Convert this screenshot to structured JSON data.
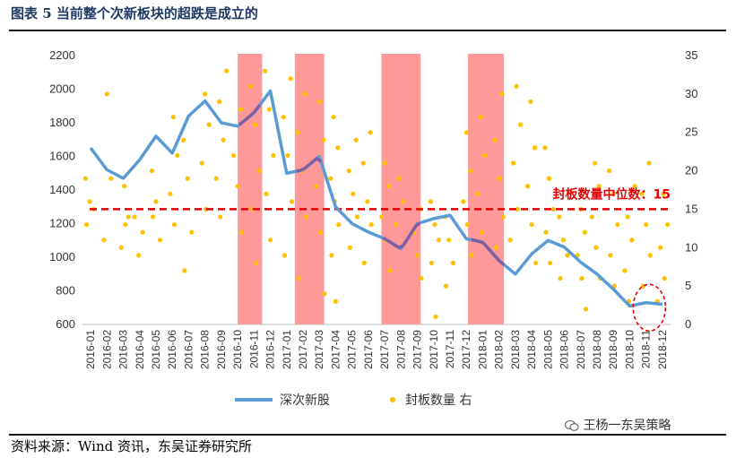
{
  "header": {
    "title": "图表 5  当前整个次新板块的超跌是成立的"
  },
  "footer": {
    "source": "资料来源：Wind 资讯，东吴证券研究所"
  },
  "watermark": {
    "text": "王杨一东吴策略",
    "icon": "wechat-icon"
  },
  "colors": {
    "line": "#5b9bd5",
    "dots": "#ffc000",
    "shade": "#ff9999",
    "median": "#e60000",
    "highlight": "#7f5f9f"
  },
  "chart_data": {
    "type": "line",
    "title": "",
    "x_categories": [
      "2016-01",
      "2016-02",
      "2016-03",
      "2016-04",
      "2016-05",
      "2016-06",
      "2016-07",
      "2016-08",
      "2016-09",
      "2016-10",
      "2016-11",
      "2016-12",
      "2017-01",
      "2017-02",
      "2017-03",
      "2017-04",
      "2017-05",
      "2017-06",
      "2017-07",
      "2017-08",
      "2017-09",
      "2017-10",
      "2017-11",
      "2017-12",
      "2018-01",
      "2018-02",
      "2018-03",
      "2018-04",
      "2018-05",
      "2018-06",
      "2018-07",
      "2018-08",
      "2018-09",
      "2018-10",
      "2018-11",
      "2018-12"
    ],
    "y_left": {
      "ticks": [
        "2200",
        "2000",
        "1800",
        "1600",
        "1400",
        "1200",
        "1000",
        "800",
        "600"
      ],
      "min": 600,
      "max": 2200
    },
    "y_right": {
      "ticks": [
        "35",
        "30",
        "25",
        "20",
        "15",
        "10",
        "5",
        "0"
      ],
      "min": 0,
      "max": 35
    },
    "series": [
      {
        "name": "深次新股",
        "axis": "left",
        "values": [
          1650,
          1520,
          1470,
          1580,
          1720,
          1620,
          1840,
          1930,
          1800,
          1780,
          1860,
          1990,
          1500,
          1520,
          1600,
          1300,
          1200,
          1150,
          1110,
          1050,
          1200,
          1230,
          1250,
          1110,
          1090,
          980,
          900,
          1020,
          1100,
          1060,
          970,
          900,
          810,
          710,
          730,
          720
        ]
      },
      {
        "name": "封板数量 右",
        "axis": "right",
        "kind": "scatter",
        "values": [
          [
            0,
            19
          ],
          [
            0,
            16
          ],
          [
            0,
            15
          ],
          [
            0,
            13
          ],
          [
            1,
            30
          ],
          [
            1,
            19
          ],
          [
            1,
            11
          ],
          [
            2,
            18
          ],
          [
            2,
            14
          ],
          [
            2,
            10
          ],
          [
            2,
            13
          ],
          [
            3,
            14
          ],
          [
            3,
            9
          ],
          [
            3,
            12
          ],
          [
            4,
            20
          ],
          [
            4,
            16
          ],
          [
            4,
            11
          ],
          [
            4,
            14
          ],
          [
            5,
            27
          ],
          [
            5,
            22
          ],
          [
            5,
            17
          ],
          [
            5,
            13
          ],
          [
            6,
            24
          ],
          [
            6,
            19
          ],
          [
            6,
            12
          ],
          [
            6,
            7
          ],
          [
            7,
            30
          ],
          [
            7,
            26
          ],
          [
            7,
            21
          ],
          [
            7,
            15
          ],
          [
            8,
            33
          ],
          [
            8,
            29
          ],
          [
            8,
            24
          ],
          [
            8,
            19
          ],
          [
            8,
            14
          ],
          [
            9,
            28
          ],
          [
            9,
            22
          ],
          [
            9,
            18
          ],
          [
            9,
            12
          ],
          [
            10,
            31
          ],
          [
            10,
            26
          ],
          [
            10,
            20
          ],
          [
            10,
            15
          ],
          [
            10,
            8
          ],
          [
            11,
            33
          ],
          [
            11,
            28
          ],
          [
            11,
            22
          ],
          [
            11,
            17
          ],
          [
            11,
            11
          ],
          [
            12,
            32
          ],
          [
            12,
            27
          ],
          [
            12,
            22
          ],
          [
            12,
            16
          ],
          [
            12,
            9
          ],
          [
            13,
            30
          ],
          [
            13,
            25
          ],
          [
            13,
            20
          ],
          [
            13,
            14
          ],
          [
            13,
            6
          ],
          [
            14,
            29
          ],
          [
            14,
            24
          ],
          [
            14,
            18
          ],
          [
            14,
            12
          ],
          [
            14,
            4
          ],
          [
            15,
            27
          ],
          [
            15,
            23
          ],
          [
            15,
            19
          ],
          [
            15,
            16
          ],
          [
            15,
            13
          ],
          [
            15,
            9
          ],
          [
            15,
            3
          ],
          [
            16,
            24
          ],
          [
            16,
            20
          ],
          [
            16,
            17
          ],
          [
            16,
            14
          ],
          [
            16,
            10
          ],
          [
            17,
            25
          ],
          [
            17,
            21
          ],
          [
            17,
            16
          ],
          [
            17,
            13
          ],
          [
            17,
            8
          ],
          [
            18,
            21
          ],
          [
            18,
            18
          ],
          [
            18,
            14
          ],
          [
            18,
            11
          ],
          [
            18,
            7
          ],
          [
            19,
            19
          ],
          [
            19,
            16
          ],
          [
            19,
            13
          ],
          [
            19,
            10
          ],
          [
            20,
            15
          ],
          [
            20,
            12
          ],
          [
            20,
            9
          ],
          [
            20,
            6
          ],
          [
            21,
            16
          ],
          [
            21,
            13
          ],
          [
            21,
            11
          ],
          [
            21,
            8
          ],
          [
            21,
            1
          ],
          [
            22,
            14
          ],
          [
            22,
            11
          ],
          [
            22,
            8
          ],
          [
            22,
            5
          ],
          [
            23,
            25
          ],
          [
            23,
            20
          ],
          [
            23,
            16
          ],
          [
            23,
            13
          ],
          [
            23,
            9
          ],
          [
            24,
            27
          ],
          [
            24,
            22
          ],
          [
            24,
            17
          ],
          [
            24,
            12
          ],
          [
            25,
            30
          ],
          [
            25,
            24
          ],
          [
            25,
            19
          ],
          [
            25,
            14
          ],
          [
            25,
            10
          ],
          [
            26,
            31
          ],
          [
            26,
            26
          ],
          [
            26,
            21
          ],
          [
            26,
            15
          ],
          [
            26,
            11
          ],
          [
            27,
            29
          ],
          [
            27,
            23
          ],
          [
            27,
            18
          ],
          [
            27,
            13
          ],
          [
            27,
            8
          ],
          [
            28,
            23
          ],
          [
            28,
            19
          ],
          [
            28,
            15
          ],
          [
            28,
            12
          ],
          [
            28,
            8
          ],
          [
            29,
            14
          ],
          [
            29,
            11
          ],
          [
            29,
            9
          ],
          [
            29,
            6
          ],
          [
            30,
            15
          ],
          [
            30,
            12
          ],
          [
            30,
            9
          ],
          [
            30,
            6
          ],
          [
            30,
            2
          ],
          [
            31,
            21
          ],
          [
            31,
            18
          ],
          [
            31,
            14
          ],
          [
            31,
            10
          ],
          [
            31,
            6
          ],
          [
            32,
            20
          ],
          [
            32,
            17
          ],
          [
            32,
            13
          ],
          [
            32,
            9
          ],
          [
            32,
            5
          ],
          [
            33,
            18
          ],
          [
            33,
            14
          ],
          [
            33,
            11
          ],
          [
            33,
            7
          ],
          [
            33,
            3
          ],
          [
            34,
            21
          ],
          [
            34,
            17
          ],
          [
            34,
            13
          ],
          [
            34,
            9
          ],
          [
            34,
            5
          ],
          [
            35,
            17
          ],
          [
            35,
            13
          ],
          [
            35,
            10
          ],
          [
            35,
            6
          ],
          [
            35,
            3
          ]
        ]
      }
    ],
    "median_value": 15,
    "median_label": "封板数量中位数：15",
    "shaded_periods": [
      [
        9.5,
        11
      ],
      [
        13,
        14.8
      ],
      [
        18.3,
        20.7
      ],
      [
        23.6,
        25.8
      ]
    ],
    "highlight_segments": [
      [
        9.6,
        11
      ],
      [
        13.1,
        14.8
      ],
      [
        18.4,
        20.7
      ],
      [
        23.8,
        25.8
      ]
    ],
    "annotation": "dashed-circle-2018-11"
  }
}
